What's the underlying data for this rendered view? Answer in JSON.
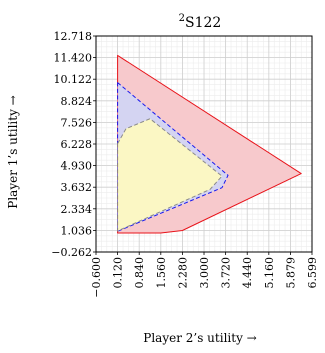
{
  "chart_data": {
    "type": "area",
    "title": "S122",
    "title_superscript": "2",
    "xlabel": "Player 2’s utility →",
    "ylabel": "Player 1’s utility →",
    "xlim": [
      -0.6,
      6.599
    ],
    "ylim": [
      -0.262,
      12.718
    ],
    "grid": true,
    "x_ticks": [
      -0.6,
      0.12,
      0.84,
      1.56,
      2.28,
      3.0,
      3.72,
      4.44,
      5.16,
      5.879,
      6.599
    ],
    "x_tick_labels": [
      "−0.600",
      "0.120",
      "0.840",
      "1.560",
      "2.280",
      "3.000",
      "3.720",
      "4.440",
      "5.160",
      "5.879",
      "6.599"
    ],
    "y_ticks": [
      -0.262,
      1.036,
      2.334,
      3.632,
      4.93,
      6.228,
      7.526,
      8.824,
      10.122,
      11.42,
      12.718
    ],
    "y_tick_labels": [
      "−0.262",
      "1.036",
      "2.334",
      "3.632",
      "4.930",
      "6.228",
      "7.526",
      "8.824",
      "10.122",
      "11.420",
      "12.718"
    ],
    "series": [
      {
        "kind": "region",
        "fill": "#f7c9cc",
        "stroke": "#e8131a",
        "dash": false,
        "x": [
          0.12,
          6.24,
          2.28,
          1.56,
          0.12
        ],
        "y": [
          11.55,
          4.45,
          1.03,
          0.88,
          0.88
        ]
      },
      {
        "kind": "region",
        "fill": "#d4d4f2",
        "stroke": "#1a1aee",
        "dash": true,
        "x": [
          0.12,
          3.8,
          3.6,
          0.12
        ],
        "y": [
          9.92,
          4.35,
          3.6,
          0.98
        ]
      },
      {
        "kind": "region",
        "fill": "#fbf7c4",
        "stroke": "#8a8a8a",
        "dash": true,
        "x": [
          0.12,
          0.4,
          1.2,
          3.6,
          3.2,
          0.12
        ],
        "y": [
          6.25,
          7.15,
          7.75,
          4.3,
          3.5,
          1.0
        ]
      }
    ]
  }
}
